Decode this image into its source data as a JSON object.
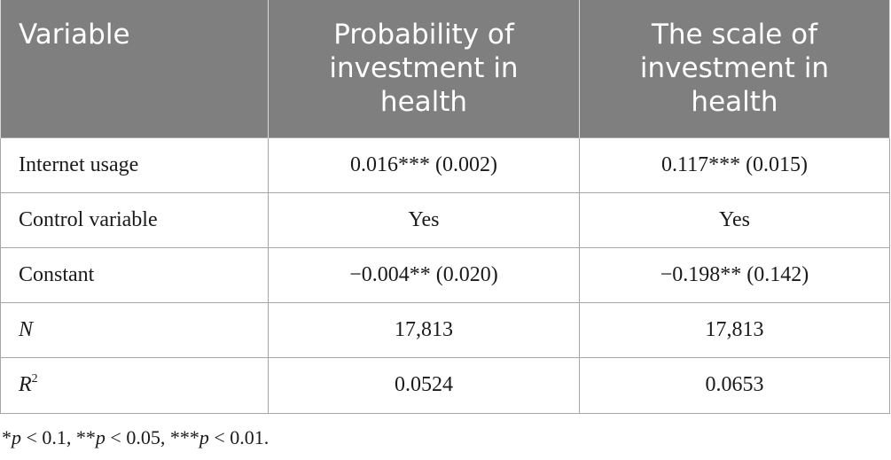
{
  "table": {
    "header": {
      "variable": "Variable",
      "col1": "Probability of investment in health",
      "col2": "The scale of investment in health"
    },
    "rows": [
      {
        "label": "Internet usage",
        "col1": "0.016*** (0.002)",
        "col2": "0.117*** (0.015)"
      },
      {
        "label": "Control variable",
        "col1": "Yes",
        "col2": "Yes"
      },
      {
        "label": "Constant",
        "col1": "−0.004** (0.020)",
        "col2": "−0.198** (0.142)"
      },
      {
        "label": "N",
        "col1": "17,813",
        "col2": "17,813"
      },
      {
        "label": "R",
        "label_sup": "2",
        "col1": "0.0524",
        "col2": "0.0653"
      }
    ]
  },
  "footnote": {
    "s1": "*",
    "p1": "p",
    "s2": " < 0.1, **",
    "p2": "p",
    "s3": " < 0.05, ***",
    "p3": "p",
    "s4": " < 0.01."
  }
}
